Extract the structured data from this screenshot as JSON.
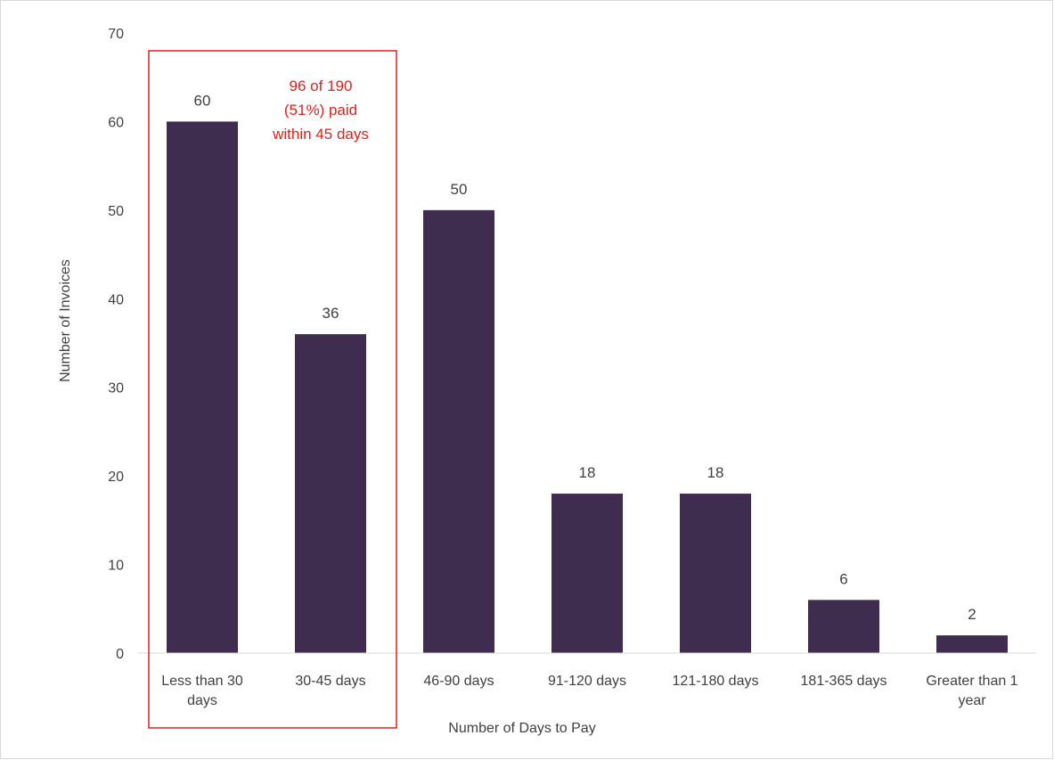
{
  "chart_data": {
    "type": "bar",
    "categories": [
      [
        "Less than 30",
        "days"
      ],
      [
        "30-45 days"
      ],
      [
        "46-90 days"
      ],
      [
        "91-120 days"
      ],
      [
        "121-180 days"
      ],
      [
        "181-365 days"
      ],
      [
        "Greater than 1",
        "year"
      ]
    ],
    "values": [
      60,
      36,
      50,
      18,
      18,
      6,
      2
    ],
    "data_labels": [
      "60",
      "36",
      "50",
      "18",
      "18",
      "6",
      "2"
    ],
    "xlabel": "Number of Days to Pay",
    "ylabel": "Number of Invoices",
    "ylim": [
      0,
      70
    ],
    "yticks": [
      0,
      10,
      20,
      30,
      40,
      50,
      60,
      70
    ],
    "grid": false,
    "legend": "none",
    "bar_color": "#3f2d4f",
    "annotation": {
      "lines": [
        "96 of 190",
        "(51%) paid",
        "within 45 days"
      ],
      "color": "#e0201a",
      "highlights_categories": [
        0,
        1
      ]
    }
  }
}
